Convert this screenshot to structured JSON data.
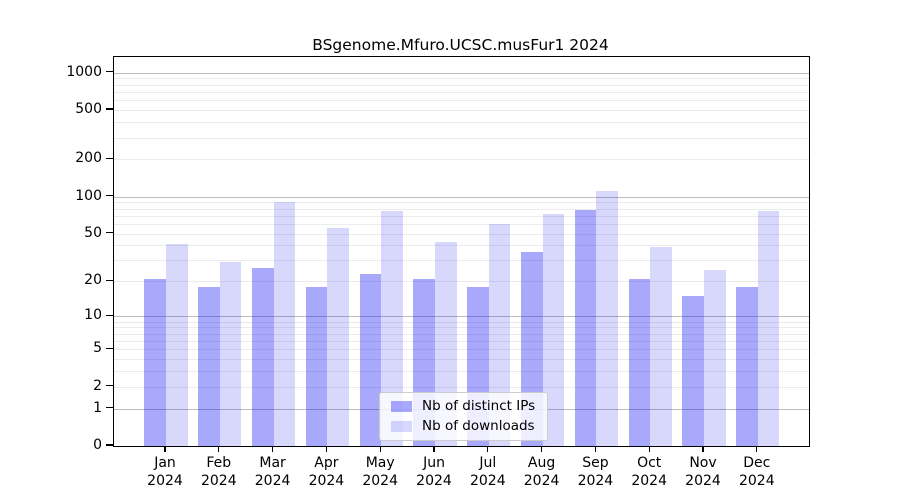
{
  "chart_data": {
    "type": "bar",
    "title": "BSgenome.Mfuro.UCSC.musFur1 2024",
    "year": "2024",
    "categories": [
      "Jan",
      "Feb",
      "Mar",
      "Apr",
      "May",
      "Jun",
      "Jul",
      "Aug",
      "Sep",
      "Oct",
      "Nov",
      "Dec"
    ],
    "series": [
      {
        "name": "Nb of distinct IPs",
        "color": "rgba(5,5,245,0.345)",
        "values": [
          21,
          18,
          26,
          18,
          23,
          21,
          18,
          35,
          78,
          21,
          15,
          18
        ]
      },
      {
        "name": "Nb of downloads",
        "color": "rgba(5,5,245,0.155)",
        "values": [
          41,
          29,
          90,
          55,
          77,
          43,
          60,
          72,
          112,
          39,
          25,
          76
        ]
      }
    ],
    "y_scale": "log10(v+1)",
    "y_tick_values": [
      0,
      1,
      2,
      5,
      10,
      20,
      50,
      100,
      200,
      500,
      1000
    ],
    "y_tick_labels": [
      "0",
      "1",
      "2",
      "5",
      "10",
      "20",
      "50",
      "100",
      "200",
      "500",
      "1000"
    ],
    "ylim": [
      0,
      1336
    ],
    "grid_major_values": [
      1,
      10,
      100,
      1000
    ],
    "grid_minor_values": [
      2,
      3,
      4,
      6,
      7,
      8,
      9,
      5,
      20,
      30,
      40,
      50,
      60,
      70,
      80,
      90,
      200,
      300,
      400,
      500,
      600,
      700,
      800,
      900
    ],
    "grid": "on",
    "legend_position": "bottom-center",
    "xlabel": "",
    "ylabel": ""
  }
}
